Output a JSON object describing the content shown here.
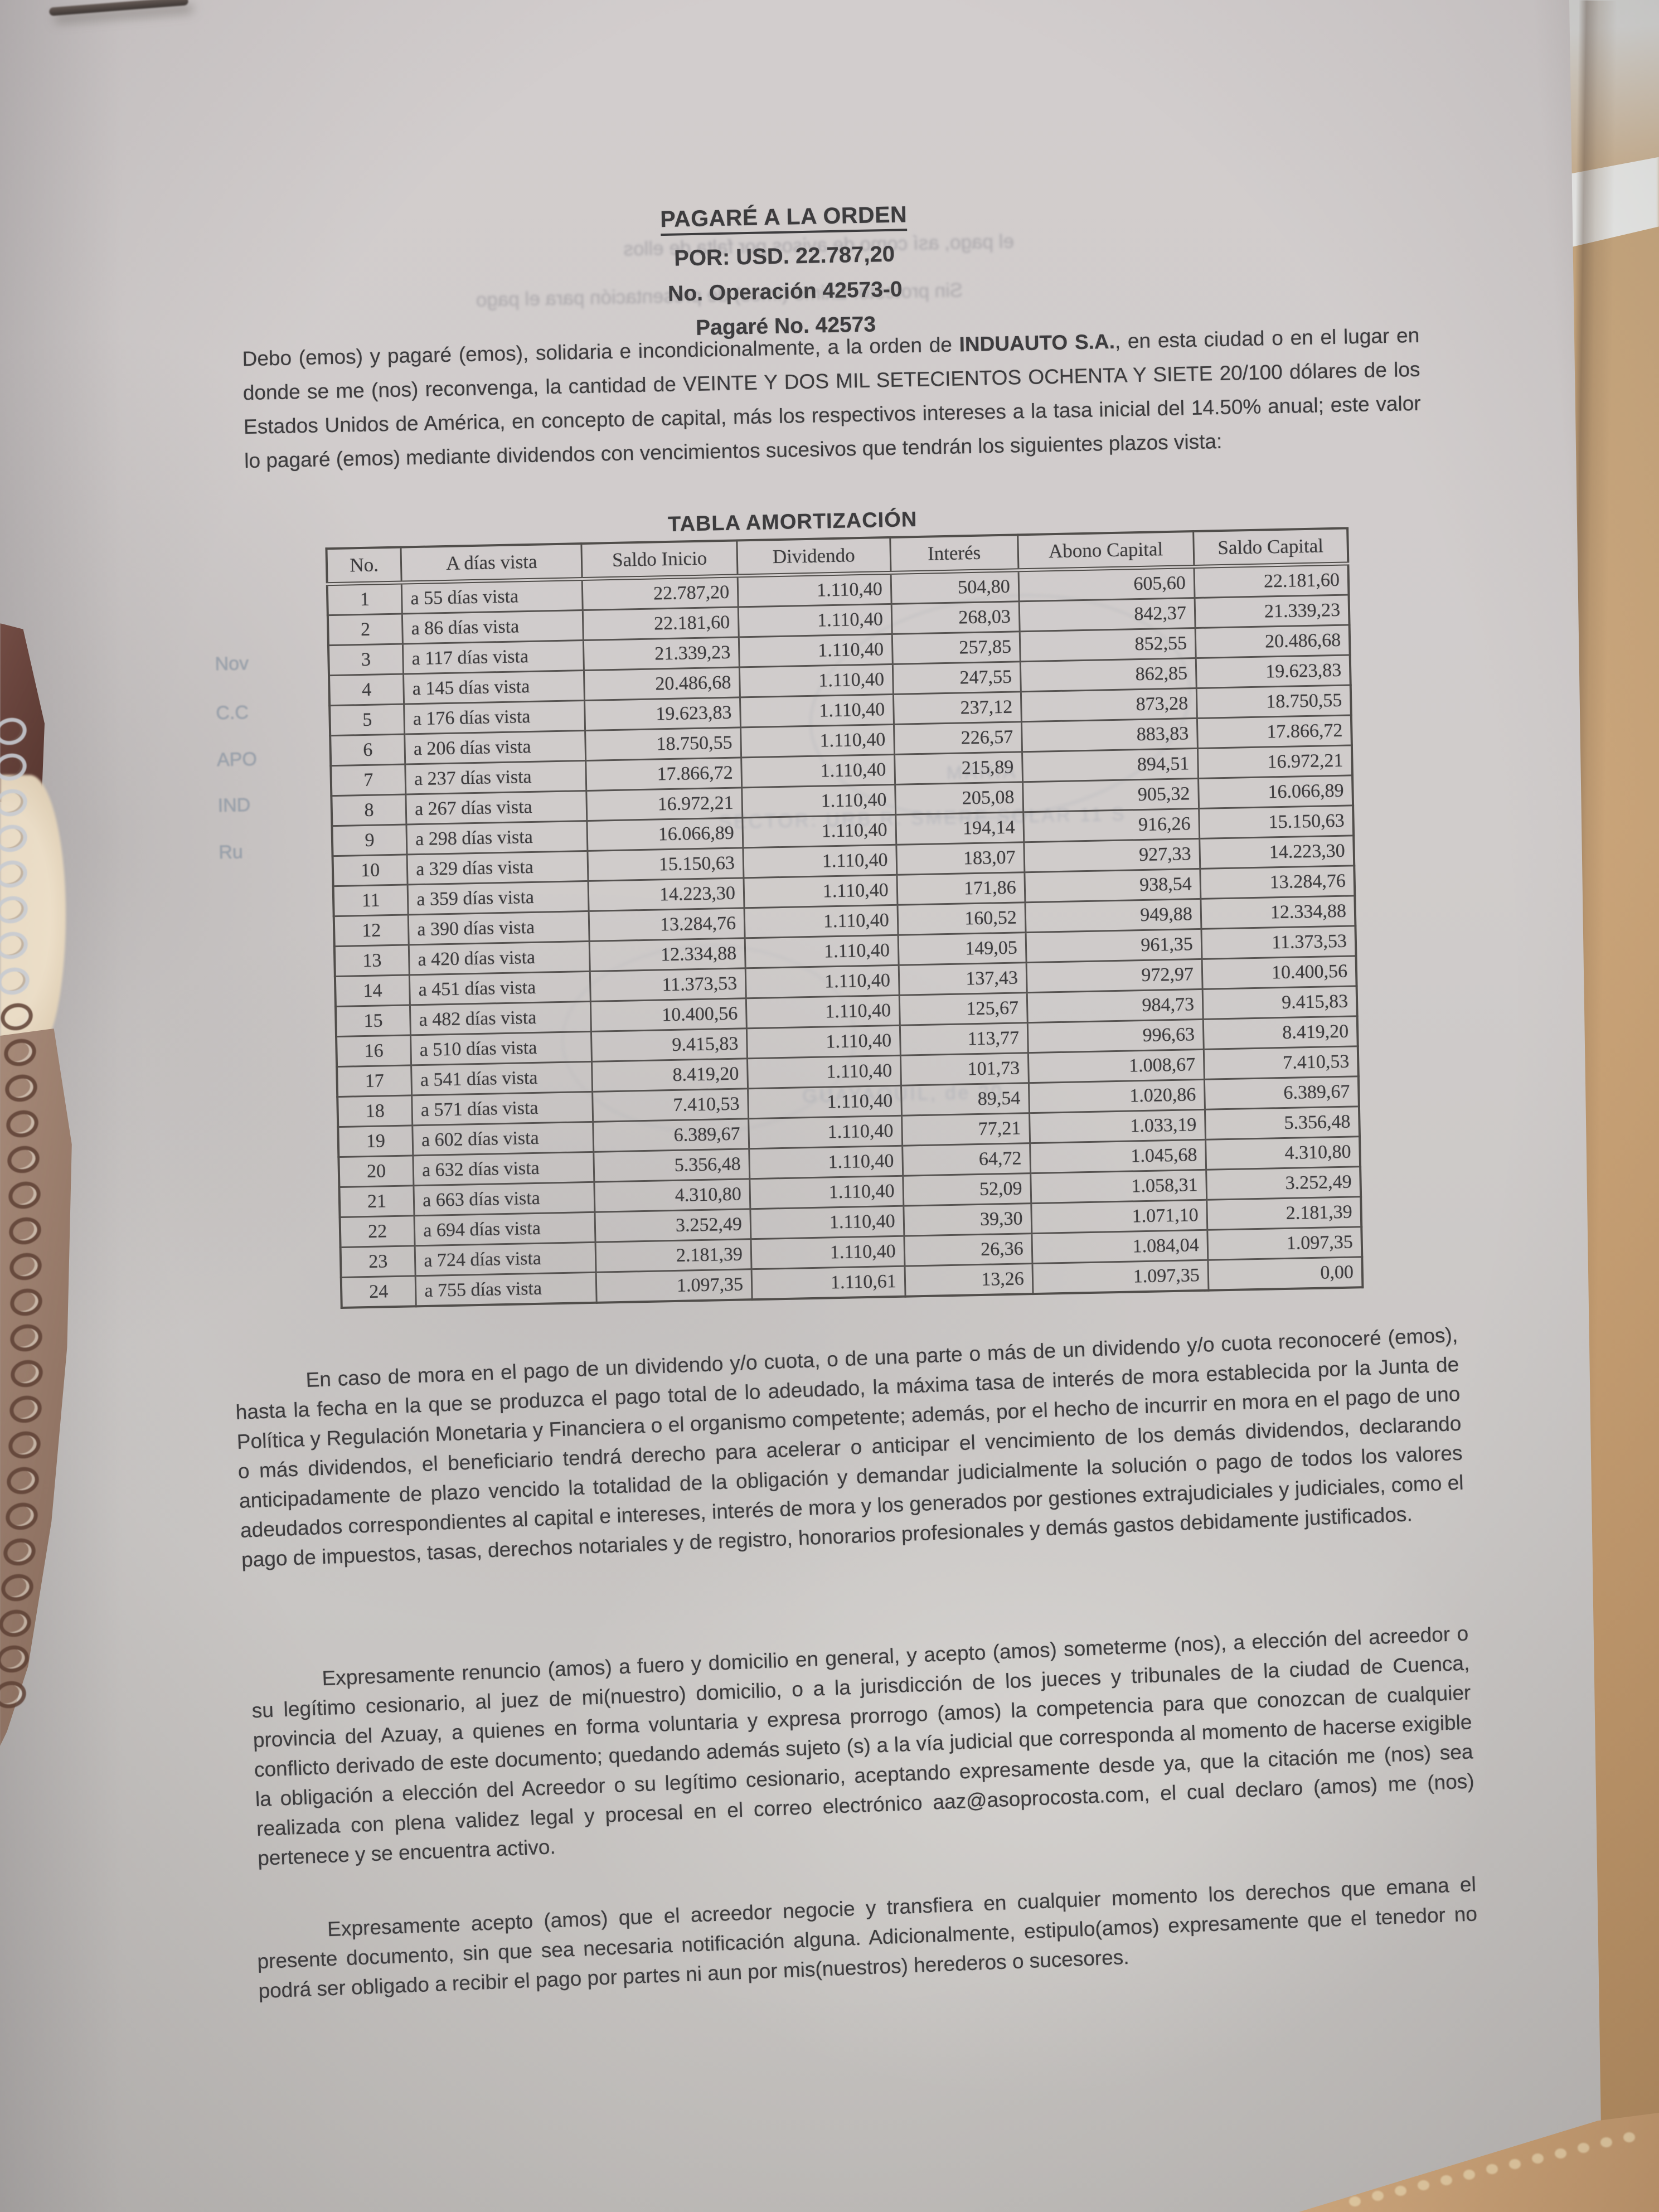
{
  "photo": {
    "colors": {
      "table_tan": "#cda77b",
      "wall_gray": "#d3d4d2",
      "white_band": "#edeeec",
      "paper": "#cecac9",
      "ink": "#3d3c3e",
      "stamp_blue": "#8e9aa8",
      "maroon_object": "#5e3b34",
      "notebook_taupe": "#957766",
      "skin": "#f1e3cc"
    },
    "objects": {
      "pen_streak": "dark pen/edge streak at top left",
      "maroon_object": "dark red object at left edge",
      "finger": "finger holding sheet at left edge",
      "spiral_notebook": "spiral notebook binding along left edge",
      "placemat": "woven tan placemat at bottom right corner"
    }
  },
  "document": {
    "header": {
      "title": "PAGARÉ A LA ORDEN",
      "amount_line": "POR: USD.  22.787,20",
      "operation_line": "No. Operación 42573-0",
      "pagare_line": "Pagaré No. 42573"
    },
    "intro": {
      "part1": "Debo (emos) y pagaré (emos), solidaria e incondicionalmente, a la orden de ",
      "bold": "INDUAUTO S.A.",
      "part2": ", en esta ciudad o en el lugar en donde se me (nos) reconvenga, la cantidad de VEINTE Y DOS MIL SETECIENTOS OCHENTA Y SIETE 20/100 dólares de los Estados Unidos de América, en concepto de capital, más los respectivos intereses a la tasa inicial del 14.50% anual; este valor lo pagaré (emos) mediante dividendos con vencimientos sucesivos que tendrán los siguientes plazos vista:"
    },
    "table": {
      "title": "TABLA AMORTIZACIÓN",
      "headers": [
        "No.",
        "A días vista",
        "Saldo Inicio",
        "Dividendo",
        "Interés",
        "Abono Capital",
        "Saldo Capital"
      ],
      "rows": [
        [
          "1",
          "a 55 días vista",
          "22.787,20",
          "1.110,40",
          "504,80",
          "605,60",
          "22.181,60"
        ],
        [
          "2",
          "a 86 días vista",
          "22.181,60",
          "1.110,40",
          "268,03",
          "842,37",
          "21.339,23"
        ],
        [
          "3",
          "a 117 días vista",
          "21.339,23",
          "1.110,40",
          "257,85",
          "852,55",
          "20.486,68"
        ],
        [
          "4",
          "a 145 días vista",
          "20.486,68",
          "1.110,40",
          "247,55",
          "862,85",
          "19.623,83"
        ],
        [
          "5",
          "a 176 días vista",
          "19.623,83",
          "1.110,40",
          "237,12",
          "873,28",
          "18.750,55"
        ],
        [
          "6",
          "a 206 días vista",
          "18.750,55",
          "1.110,40",
          "226,57",
          "883,83",
          "17.866,72"
        ],
        [
          "7",
          "a 237 días vista",
          "17.866,72",
          "1.110,40",
          "215,89",
          "894,51",
          "16.972,21"
        ],
        [
          "8",
          "a 267 días vista",
          "16.972,21",
          "1.110,40",
          "205,08",
          "905,32",
          "16.066,89"
        ],
        [
          "9",
          "a 298 días vista",
          "16.066,89",
          "1.110,40",
          "194,14",
          "916,26",
          "15.150,63"
        ],
        [
          "10",
          "a 329 días vista",
          "15.150,63",
          "1.110,40",
          "183,07",
          "927,33",
          "14.223,30"
        ],
        [
          "11",
          "a 359 días vista",
          "14.223,30",
          "1.110,40",
          "171,86",
          "938,54",
          "13.284,76"
        ],
        [
          "12",
          "a 390 días vista",
          "13.284,76",
          "1.110,40",
          "160,52",
          "949,88",
          "12.334,88"
        ],
        [
          "13",
          "a 420 días vista",
          "12.334,88",
          "1.110,40",
          "149,05",
          "961,35",
          "11.373,53"
        ],
        [
          "14",
          "a 451 días vista",
          "11.373,53",
          "1.110,40",
          "137,43",
          "972,97",
          "10.400,56"
        ],
        [
          "15",
          "a 482 días vista",
          "10.400,56",
          "1.110,40",
          "125,67",
          "984,73",
          "9.415,83"
        ],
        [
          "16",
          "a 510 días vista",
          "9.415,83",
          "1.110,40",
          "113,77",
          "996,63",
          "8.419,20"
        ],
        [
          "17",
          "a 541 días vista",
          "8.419,20",
          "1.110,40",
          "101,73",
          "1.008,67",
          "7.410,53"
        ],
        [
          "18",
          "a 571 días vista",
          "7.410,53",
          "1.110,40",
          "89,54",
          "1.020,86",
          "6.389,67"
        ],
        [
          "19",
          "a 602 días vista",
          "6.389,67",
          "1.110,40",
          "77,21",
          "1.033,19",
          "5.356,48"
        ],
        [
          "20",
          "a 632 días vista",
          "5.356,48",
          "1.110,40",
          "64,72",
          "1.045,68",
          "4.310,80"
        ],
        [
          "21",
          "a 663 días vista",
          "4.310,80",
          "1.110,40",
          "52,09",
          "1.058,31",
          "3.252,49"
        ],
        [
          "22",
          "a 694 días vista",
          "3.252,49",
          "1.110,40",
          "39,30",
          "1.071,10",
          "2.181,39"
        ],
        [
          "23",
          "a 724 días vista",
          "2.181,39",
          "1.110,40",
          "26,36",
          "1.084,04",
          "1.097,35"
        ],
        [
          "24",
          "a 755 días vista",
          "1.097,35",
          "1.110,61",
          "13,26",
          "1.097,35",
          "0,00"
        ]
      ]
    },
    "clauses": [
      "En caso de mora en el pago de un dividendo y/o cuota, o de una parte o más de un dividendo y/o cuota reconoceré (emos), hasta la fecha en la que se produzca el pago total de lo adeudado, la máxima tasa de interés de mora establecida por la Junta de Política y Regulación Monetaria y Financiera o el organismo competente; además, por el hecho de incurrir en mora en el pago de uno o más dividendos, el beneficiario tendrá derecho para acelerar o anticipar el vencimiento de los demás dividendos, declarando anticipadamente de plazo vencido la totalidad de la obligación y demandar judicialmente la solución o pago de todos los valores adeudados correspondientes al capital e intereses, interés de mora y los generados por gestiones extrajudiciales y judiciales, como el pago de impuestos, tasas, derechos notariales y de registro, honorarios profesionales y demás gastos debidamente justificados.",
      "Expresamente renuncio (amos) a fuero y domicilio en general, y acepto (amos) someterme (nos), a elección del acreedor o su legítimo cesionario, al juez de mi(nuestro) domicilio, o a la jurisdicción de los jueces y tribunales de la ciudad de Cuenca, provincia del Azuay, a quienes en forma voluntaria y expresa prorrogo (amos) la competencia para que conozcan de cualquier conflicto derivado de este documento; quedando además sujeto (s) a la vía judicial que corresponda al momento de hacerse exigible la obligación a elección del Acreedor o su legítimo cesionario, aceptando expresamente desde ya, que la citación me (nos) sea realizada con plena validez legal y procesal en el correo electrónico aaz@asoprocosta.com, el cual declaro (amos) me (nos) pertenece y se encuentra activo.",
      "Expresamente acepto (amos) que el acreedor negocie y transfiera en cualquier momento los derechos que emana el presente documento, sin que sea necesaria notificación alguna. Adicionalmente, estipulo(amos) expresamente que el tenedor no podrá ser obligado a recibir el pago por partes ni aun por mis(nuestros) herederos o sucesores."
    ]
  },
  "ghosts": {
    "mirror_line1": "el pago, así como de avisos por falta de ellos",
    "mirror_line2": "Sin protesto. Eximo (imos) de presentación para el pago",
    "stamp_column": [
      "Nov",
      "C.C",
      "APO",
      "IND",
      "Ru"
    ],
    "stamp_line1": "MARIA",
    "stamp_line2": "SECTOR: URB R. SMERE SOLAR 11 S",
    "stamp_line3": "GUAYAQUIL, de 20"
  }
}
